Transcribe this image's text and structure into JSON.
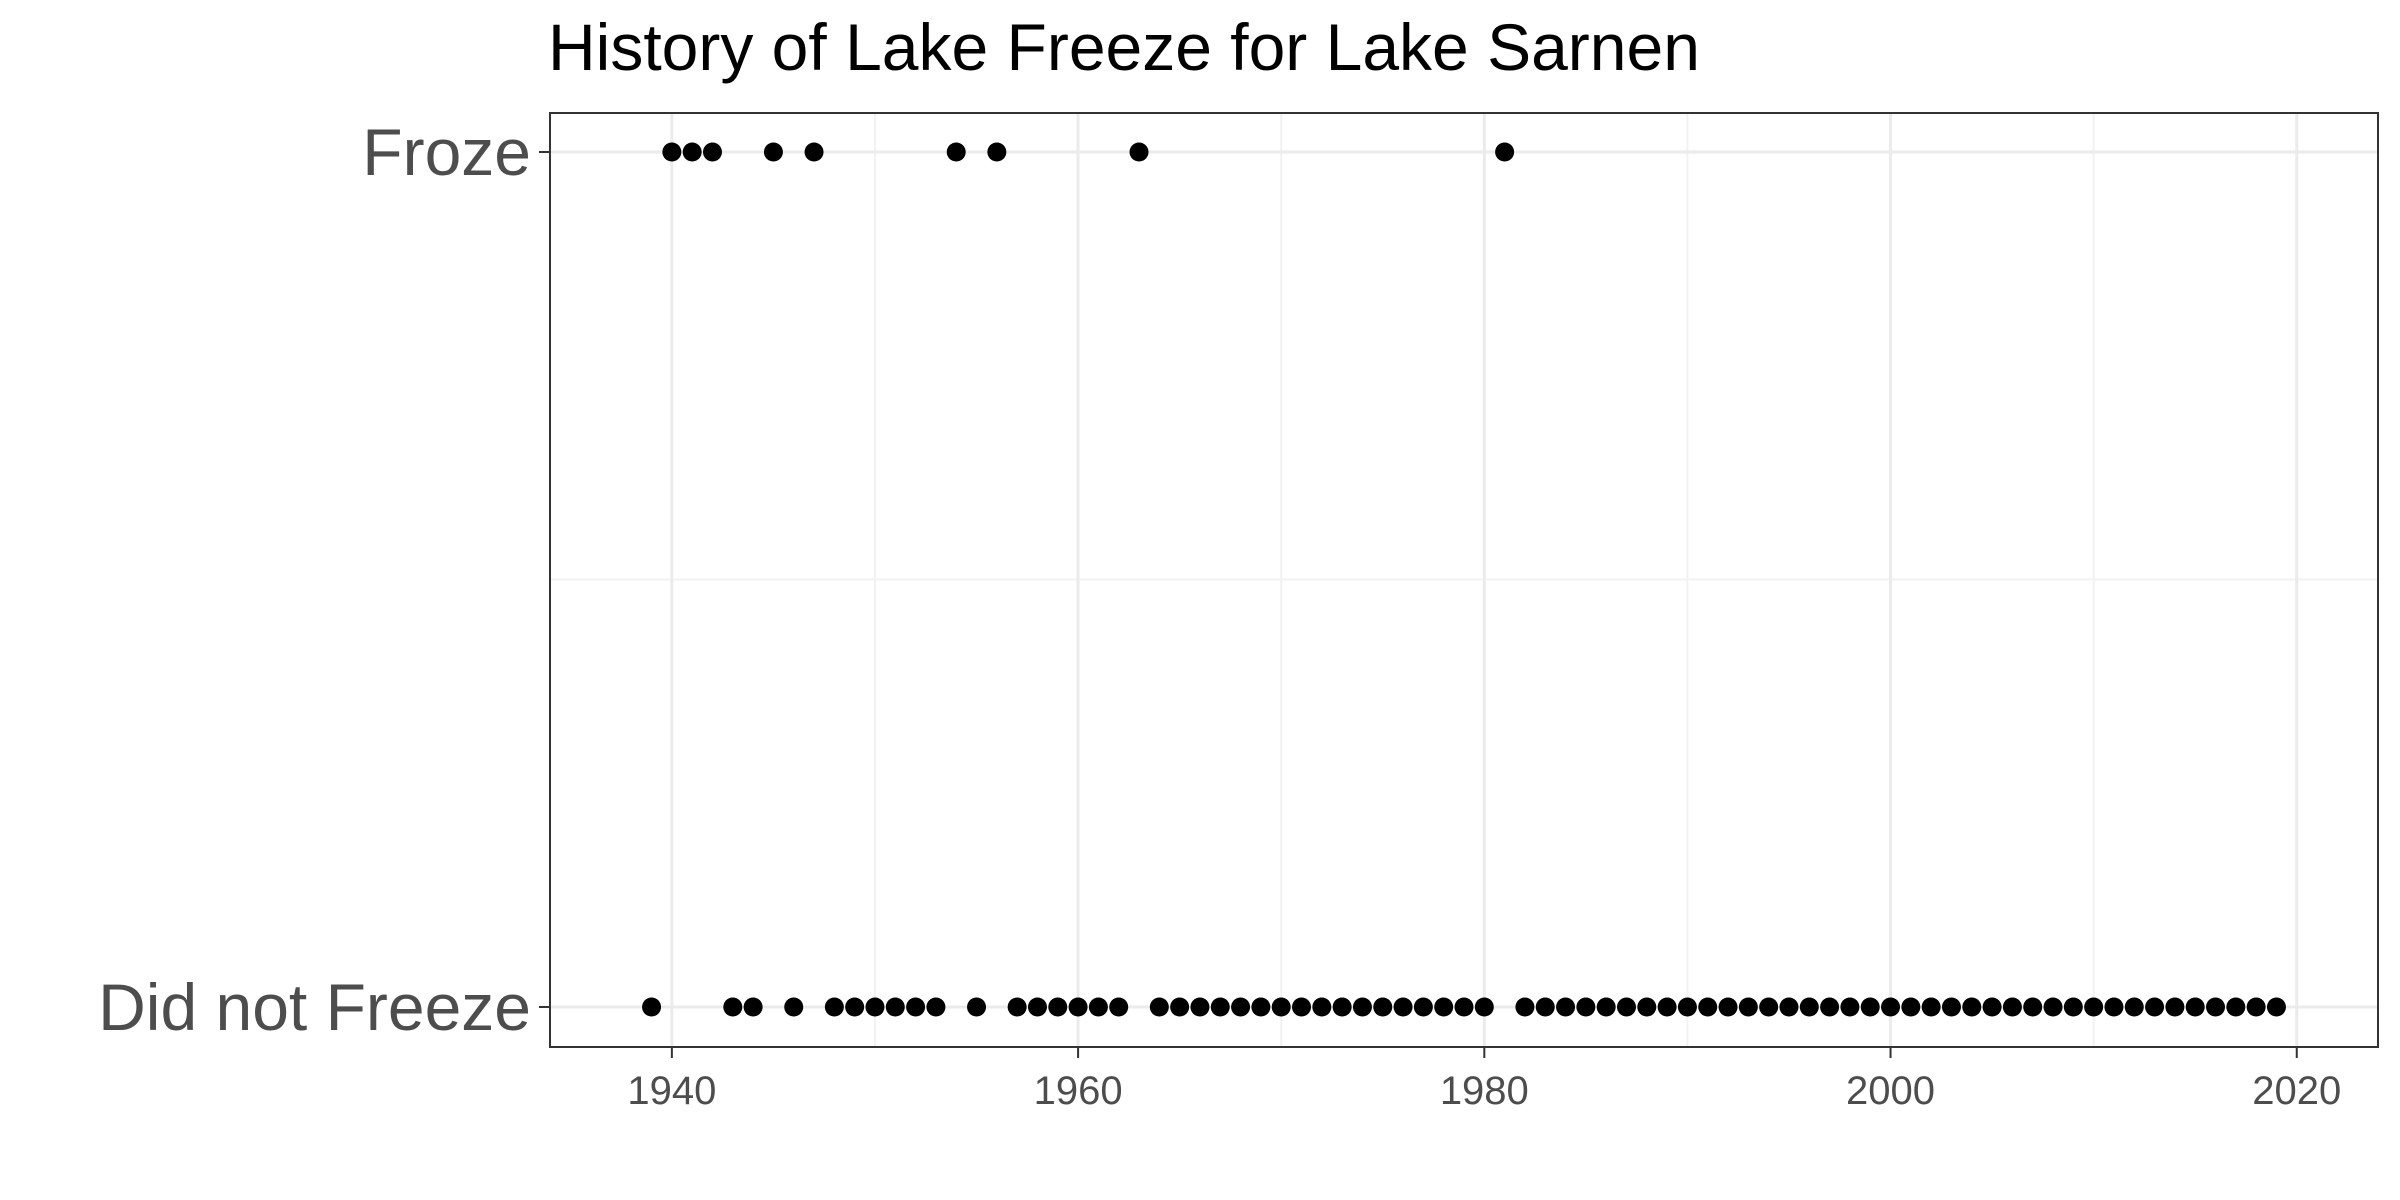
{
  "chart_data": {
    "type": "scatter",
    "title": "History of Lake Freeze for Lake Sarnen",
    "xlabel": "",
    "ylabel": "",
    "xlim": [
      1934,
      2024
    ],
    "x_ticks": [
      1940,
      1960,
      1980,
      2000,
      2020
    ],
    "y_categories": [
      "Did not Freeze",
      "Froze"
    ],
    "grid": true,
    "legend": "none",
    "point_color": "#000000",
    "series": [
      {
        "category": "Froze",
        "x": [
          1940,
          1941,
          1942,
          1945,
          1947,
          1954,
          1956,
          1963,
          1981
        ]
      },
      {
        "category": "Did not Freeze",
        "x": [
          1939,
          1943,
          1944,
          1946,
          1948,
          1949,
          1950,
          1951,
          1952,
          1953,
          1955,
          1957,
          1958,
          1959,
          1960,
          1961,
          1962,
          1964,
          1965,
          1966,
          1967,
          1968,
          1969,
          1970,
          1971,
          1972,
          1973,
          1974,
          1975,
          1976,
          1977,
          1978,
          1979,
          1980,
          1982,
          1983,
          1984,
          1985,
          1986,
          1987,
          1988,
          1989,
          1990,
          1991,
          1992,
          1993,
          1994,
          1995,
          1996,
          1997,
          1998,
          1999,
          2000,
          2001,
          2002,
          2003,
          2004,
          2005,
          2006,
          2007,
          2008,
          2009,
          2010,
          2011,
          2012,
          2013,
          2014,
          2015,
          2016,
          2017,
          2018,
          2019
        ]
      }
    ]
  }
}
